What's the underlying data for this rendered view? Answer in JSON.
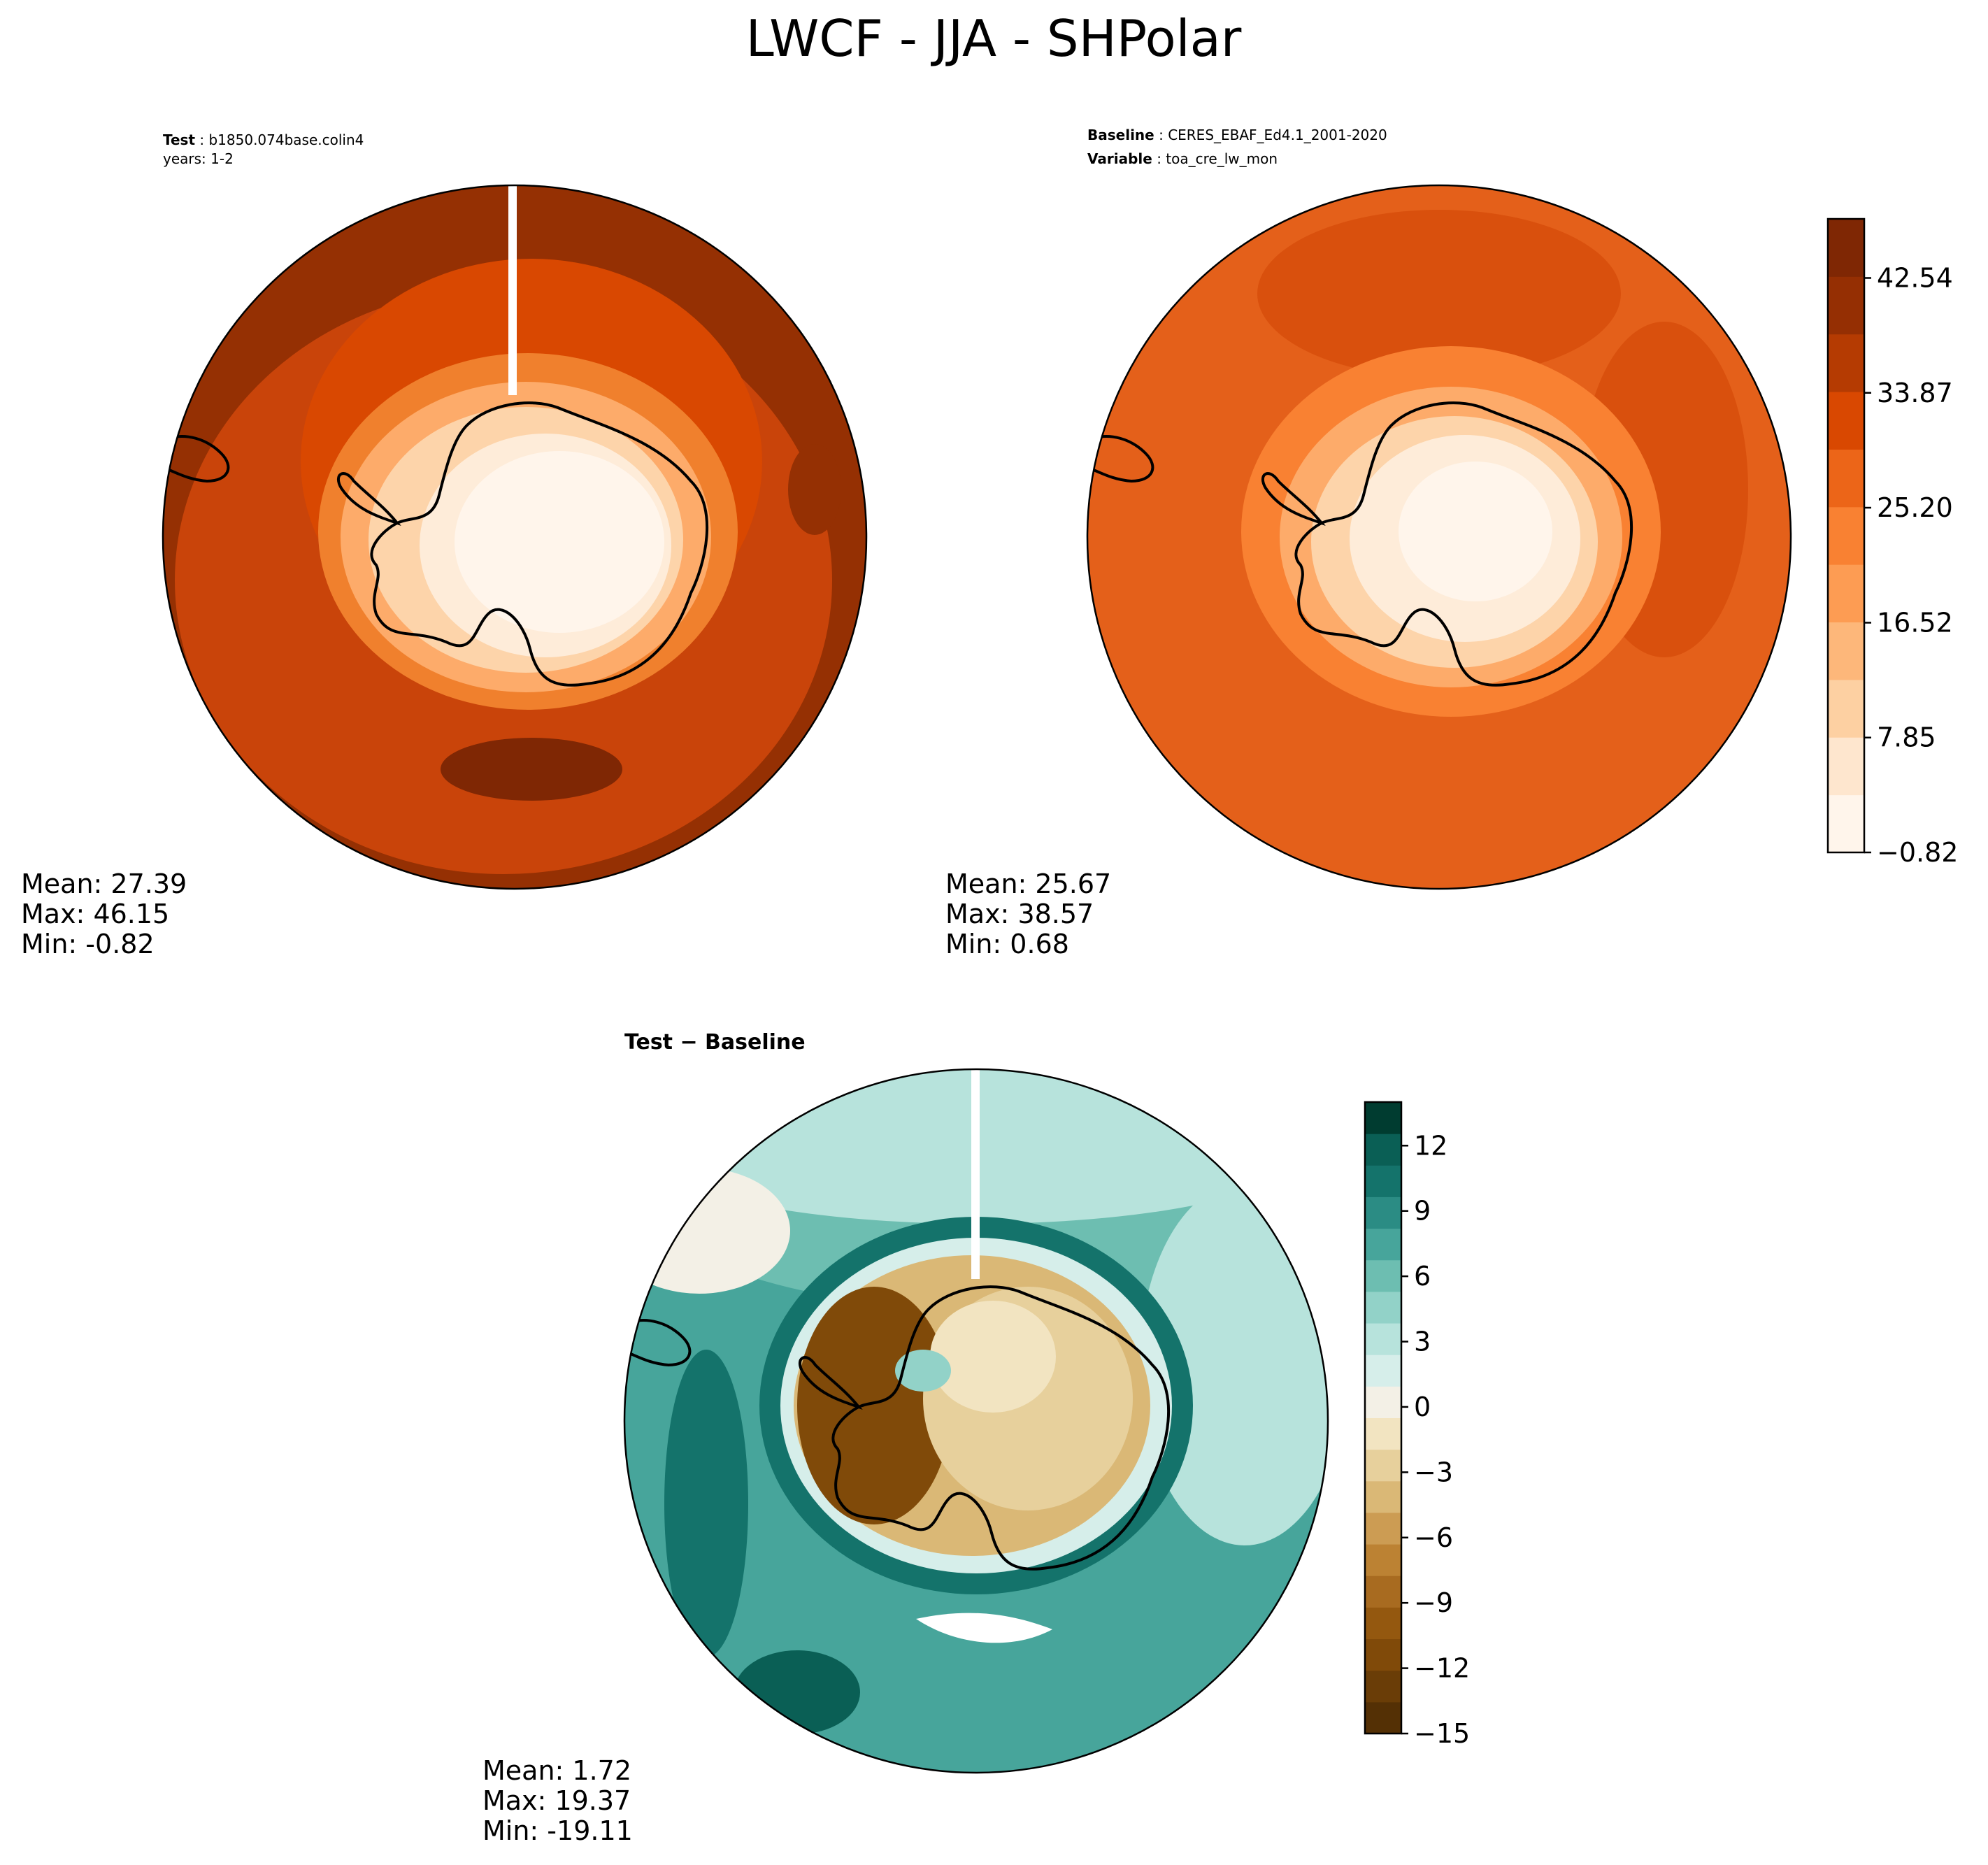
{
  "title": "LWCF - JJA - SHPolar",
  "test_panel": {
    "label": "Test",
    "name": "b1850.074base.colin4",
    "years": "years: 1-2",
    "stats": {
      "mean": "Mean: 27.39",
      "max": "Max: 46.15",
      "min": "Min: -0.82"
    }
  },
  "baseline_panel": {
    "label": "Baseline",
    "name": "CERES_EBAF_Ed4.1_2001-2020",
    "variable_label": "Variable",
    "variable": "toa_cre_lw_mon",
    "stats": {
      "mean": "Mean: 25.67",
      "max": "Max: 38.57",
      "min": "Min:  0.68"
    }
  },
  "diff_panel": {
    "title": "Test − Baseline",
    "stats": {
      "mean": "Mean:  1.72",
      "max": "Max: 19.37",
      "min": "Min: -19.11"
    }
  },
  "chart_data": [
    {
      "type": "heatmap",
      "title": "Test",
      "projection": "south polar stereographic",
      "summary": {
        "mean": 27.39,
        "max": 46.15,
        "min": -0.82
      },
      "colorbar": {
        "vmin": -0.82,
        "vmax": 47.0,
        "tick_values": [
          -0.82,
          7.85,
          16.52,
          25.2,
          33.87,
          42.54
        ],
        "tick_labels": [
          "−0.82",
          "7.85",
          "16.52",
          "25.20",
          "33.87",
          "42.54"
        ],
        "levels": 11,
        "colors": [
          "#fff5eb",
          "#fee6ce",
          "#fdd0a2",
          "#fdb77a",
          "#fd9c53",
          "#f98132",
          "#ec6518",
          "#d94801",
          "#b53b02",
          "#952f03",
          "#7f2704"
        ]
      }
    },
    {
      "type": "heatmap",
      "title": "Baseline",
      "projection": "south polar stereographic",
      "summary": {
        "mean": 25.67,
        "max": 38.57,
        "min": 0.68
      },
      "colorbar": "shared with Test"
    },
    {
      "type": "heatmap",
      "title": "Test − Baseline",
      "projection": "south polar stereographic",
      "summary": {
        "mean": 1.72,
        "max": 19.37,
        "min": -19.11
      },
      "colorbar": {
        "vmin": -15,
        "vmax": 14,
        "tick_values": [
          -15,
          -12,
          -9,
          -6,
          -3,
          0,
          3,
          6,
          9,
          12
        ],
        "tick_labels": [
          "−15",
          "−12",
          "−9",
          "−6",
          "−3",
          "0",
          "3",
          "6",
          "9",
          "12"
        ],
        "levels": 20,
        "colors": [
          "#543005",
          "#6a3d07",
          "#804a09",
          "#94580f",
          "#a86b20",
          "#bc8233",
          "#cc9c53",
          "#dab876",
          "#e7d09c",
          "#f2e4c1",
          "#f3f0e6",
          "#d6eeea",
          "#b7e3dc",
          "#92d2c8",
          "#6dbeb1",
          "#47a59b",
          "#2b8c84",
          "#14736b",
          "#0a5f55",
          "#003c30"
        ]
      }
    }
  ]
}
